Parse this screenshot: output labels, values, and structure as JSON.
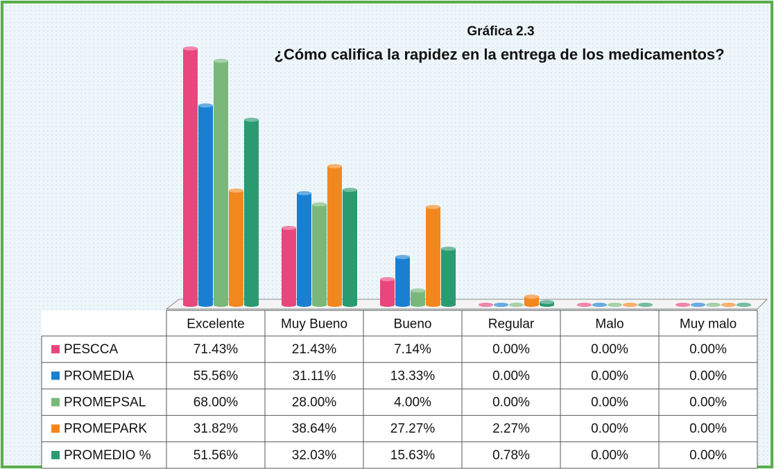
{
  "chart_data": {
    "type": "bar",
    "title": "Gráfica 2.3",
    "subtitle": "¿Cómo califica la rapidez en la entrega de los medicamentos?",
    "categories": [
      "Excelente",
      "Muy Bueno",
      "Bueno",
      "Regular",
      "Malo",
      "Muy malo"
    ],
    "series": [
      {
        "name": "PESCCA",
        "color": "#e8467c",
        "values": [
          71.43,
          21.43,
          7.14,
          0,
          0,
          0
        ],
        "value_labels": [
          "71.43%",
          "21.43%",
          "7.14%",
          "0.00%",
          "0.00%",
          "0.00%"
        ]
      },
      {
        "name": "PROMEDIA",
        "color": "#1a7fd0",
        "values": [
          55.56,
          31.11,
          13.33,
          0,
          0,
          0
        ],
        "value_labels": [
          "55.56%",
          "31.11%",
          "13.33%",
          "0.00%",
          "0.00%",
          "0.00%"
        ]
      },
      {
        "name": "PROMEPSAL",
        "color": "#79b87a",
        "values": [
          68,
          28,
          4,
          0,
          0,
          0
        ],
        "value_labels": [
          "68.00%",
          "28.00%",
          "4.00%",
          "0.00%",
          "0.00%",
          "0.00%"
        ]
      },
      {
        "name": "PROMEPARK",
        "color": "#f2871e",
        "values": [
          31.82,
          38.64,
          27.27,
          2.27,
          0,
          0
        ],
        "value_labels": [
          "31.82%",
          "38.64%",
          "27.27%",
          "2.27%",
          "0.00%",
          "0.00%"
        ]
      },
      {
        "name": "PROMEDIO %",
        "color": "#2a9a70",
        "values": [
          51.56,
          32.03,
          15.63,
          0.78,
          0,
          0
        ],
        "value_labels": [
          "51.56%",
          "32.03%",
          "15.63%",
          "0.78%",
          "0.00%",
          "0.00%"
        ]
      }
    ]
  }
}
